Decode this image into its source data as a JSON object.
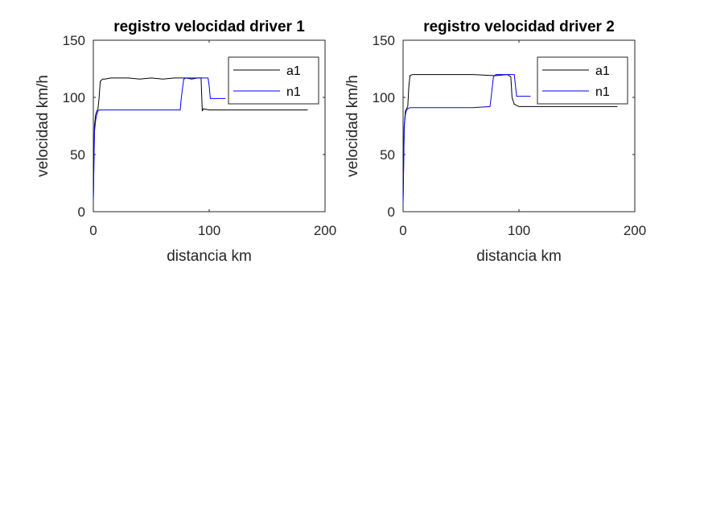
{
  "chart_data": [
    {
      "type": "line",
      "title": "registro velocidad driver 1",
      "xlabel": "distancia km",
      "ylabel": "velocidad km/h",
      "xlim": [
        0,
        200
      ],
      "ylim": [
        0,
        150
      ],
      "xticks": [
        "0",
        "100",
        "200"
      ],
      "yticks": [
        "0",
        "50",
        "100",
        "150"
      ],
      "grid": false,
      "legend_position": "top-right",
      "series": [
        {
          "name": "a1",
          "color": "#000000",
          "x": [
            0,
            1,
            2,
            3,
            4,
            5,
            6,
            8,
            10,
            15,
            20,
            30,
            40,
            50,
            60,
            70,
            80,
            85,
            90,
            93,
            94,
            95,
            100,
            110,
            120,
            140,
            160,
            180,
            185
          ],
          "y": [
            10,
            75,
            85,
            88,
            90,
            100,
            114,
            116,
            116,
            117,
            117,
            117,
            116,
            117,
            116,
            117,
            117,
            116,
            117,
            117,
            88,
            90,
            89,
            89,
            89,
            89,
            89,
            89,
            89
          ]
        },
        {
          "name": "n1",
          "color": "#0000ff",
          "x": [
            0,
            1,
            2,
            3,
            4,
            5,
            6,
            8,
            10,
            20,
            40,
            60,
            75,
            76,
            78,
            80,
            90,
            95,
            99,
            100,
            101,
            105,
            110,
            114
          ],
          "y": [
            10,
            70,
            80,
            85,
            88,
            89,
            89,
            89,
            89,
            89,
            89,
            89,
            89,
            100,
            116,
            117,
            117,
            117,
            117,
            110,
            99,
            99,
            99,
            99
          ]
        }
      ]
    },
    {
      "type": "line",
      "title": "registro velocidad driver 2",
      "xlabel": "distancia km",
      "ylabel": "velocidad km/h",
      "xlim": [
        0,
        200
      ],
      "ylim": [
        0,
        150
      ],
      "xticks": [
        "0",
        "100",
        "200"
      ],
      "yticks": [
        "0",
        "50",
        "100",
        "150"
      ],
      "grid": false,
      "legend_position": "top-right",
      "series": [
        {
          "name": "a1",
          "color": "#000000",
          "x": [
            0,
            1,
            2,
            3,
            4,
            5,
            6,
            8,
            10,
            20,
            40,
            60,
            80,
            90,
            93,
            94,
            96,
            100,
            120,
            140,
            160,
            180,
            185
          ],
          "y": [
            8,
            75,
            88,
            90,
            92,
            110,
            119,
            120,
            120,
            120,
            120,
            120,
            119,
            120,
            118,
            100,
            94,
            92,
            92,
            92,
            92,
            92,
            92
          ]
        },
        {
          "name": "n1",
          "color": "#0000ff",
          "x": [
            0,
            1,
            2,
            3,
            4,
            6,
            8,
            10,
            20,
            40,
            60,
            75,
            76,
            78,
            80,
            90,
            96,
            97,
            98,
            100,
            104,
            110
          ],
          "y": [
            8,
            75,
            85,
            89,
            90,
            91,
            91,
            91,
            91,
            91,
            91,
            92,
            100,
            118,
            120,
            120,
            120,
            110,
            101,
            101,
            101,
            101
          ]
        }
      ]
    }
  ]
}
